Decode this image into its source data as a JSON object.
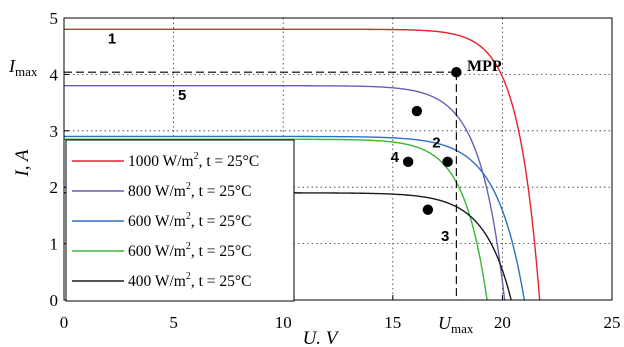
{
  "chart_data": {
    "type": "line",
    "xlabel": "U. V",
    "ylabel": "I, A",
    "xlim": [
      0,
      25
    ],
    "ylim": [
      0,
      5
    ],
    "x_ticks": [
      "0",
      "5",
      "10",
      "15",
      "20",
      "25"
    ],
    "y_ticks": [
      "0",
      "1",
      "2",
      "3",
      "4",
      "5"
    ],
    "grid": true,
    "legend_position": "bottom-left",
    "series": [
      {
        "name": "1000 W/m², t = 25°C",
        "label_prefix": "1000 W/m",
        "condition": "t = 25°C",
        "curve_label": "1",
        "color": "#e8212b",
        "isc": 4.8,
        "voc": 21.7,
        "knee": 0.045
      },
      {
        "name": "800 W/m², t = 25°C",
        "label_prefix": "800 W/m",
        "condition": "t = 25°C",
        "curve_label": "5",
        "color": "#6a5fb5",
        "isc": 3.8,
        "voc": 20.1,
        "knee": 0.055
      },
      {
        "name": "600 W/m², t = 25°C",
        "label_prefix": "600 W/m",
        "condition": "t = 25°C",
        "curve_label": "2",
        "color": "#2e6fc2",
        "isc": 2.9,
        "voc": 21.0,
        "knee": 0.06
      },
      {
        "name": "600 W/m², t = 25°C",
        "label_prefix": "600 W/m",
        "condition": "t = 25°C",
        "curve_label": "4",
        "color": "#3ab53a",
        "isc": 2.85,
        "voc": 19.3,
        "knee": 0.055
      },
      {
        "name": "400 W/m², t = 25°C",
        "label_prefix": "400 W/m",
        "condition": "t = 25°C",
        "curve_label": "3",
        "color": "#1a1a1a",
        "isc": 1.9,
        "voc": 20.4,
        "knee": 0.06
      }
    ],
    "points": [
      {
        "x": 17.9,
        "y": 4.04,
        "label": "MPP"
      },
      {
        "x": 16.1,
        "y": 3.35
      },
      {
        "x": 17.5,
        "y": 2.45
      },
      {
        "x": 15.7,
        "y": 2.45
      },
      {
        "x": 16.6,
        "y": 1.6
      }
    ],
    "annotations": {
      "i_max": {
        "main": "I",
        "sub": "max",
        "value": 4.04
      },
      "u_max": {
        "main": "U",
        "sub": "max",
        "value": 17.9
      }
    }
  }
}
